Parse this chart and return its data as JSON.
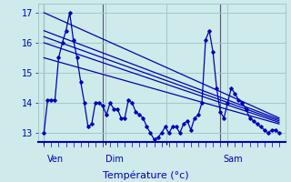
{
  "xlabel": "Température (°c)",
  "bg_color": "#ceeaea",
  "grid_color": "#a0c8c8",
  "line_color": "#0000bb",
  "vline_color": "#555577",
  "ylim": [
    12.7,
    17.3
  ],
  "yticks": [
    13,
    14,
    15,
    16,
    17
  ],
  "x_ven": 0,
  "x_dim": 48,
  "x_sam": 144,
  "x_min": -5,
  "x_max": 197,
  "forecast_lines": [
    {
      "x": [
        0,
        192
      ],
      "y": [
        17.0,
        13.5
      ]
    },
    {
      "x": [
        0,
        192
      ],
      "y": [
        16.4,
        13.45
      ]
    },
    {
      "x": [
        0,
        192
      ],
      "y": [
        16.2,
        13.4
      ]
    },
    {
      "x": [
        0,
        192
      ],
      "y": [
        16.0,
        13.35
      ]
    },
    {
      "x": [
        0,
        192
      ],
      "y": [
        15.5,
        13.3
      ]
    }
  ],
  "hourly": [
    [
      0,
      13.0
    ],
    [
      3,
      14.1
    ],
    [
      6,
      14.1
    ],
    [
      9,
      14.1
    ],
    [
      12,
      15.5
    ],
    [
      15,
      16.0
    ],
    [
      18,
      16.4
    ],
    [
      21,
      17.0
    ],
    [
      24,
      16.1
    ],
    [
      27,
      15.5
    ],
    [
      30,
      14.7
    ],
    [
      33,
      14.0
    ],
    [
      36,
      13.2
    ],
    [
      39,
      13.3
    ],
    [
      42,
      14.0
    ],
    [
      45,
      14.0
    ],
    [
      48,
      13.9
    ],
    [
      51,
      13.6
    ],
    [
      54,
      14.0
    ],
    [
      57,
      13.8
    ],
    [
      60,
      13.8
    ],
    [
      63,
      13.5
    ],
    [
      66,
      13.5
    ],
    [
      69,
      14.1
    ],
    [
      72,
      14.0
    ],
    [
      75,
      13.7
    ],
    [
      78,
      13.6
    ],
    [
      81,
      13.5
    ],
    [
      84,
      13.2
    ],
    [
      87,
      13.0
    ],
    [
      90,
      12.78
    ],
    [
      93,
      12.85
    ],
    [
      96,
      13.0
    ],
    [
      99,
      13.2
    ],
    [
      102,
      13.0
    ],
    [
      105,
      13.2
    ],
    [
      108,
      13.2
    ],
    [
      111,
      13.0
    ],
    [
      114,
      13.3
    ],
    [
      117,
      13.4
    ],
    [
      120,
      13.1
    ],
    [
      123,
      13.5
    ],
    [
      126,
      13.6
    ],
    [
      129,
      14.0
    ],
    [
      132,
      16.1
    ],
    [
      135,
      16.4
    ],
    [
      138,
      15.7
    ],
    [
      141,
      14.5
    ],
    [
      144,
      13.7
    ],
    [
      147,
      13.5
    ],
    [
      150,
      14.0
    ],
    [
      153,
      14.5
    ],
    [
      156,
      14.3
    ],
    [
      159,
      14.1
    ],
    [
      162,
      14.0
    ],
    [
      165,
      13.8
    ],
    [
      168,
      13.5
    ],
    [
      171,
      13.4
    ],
    [
      174,
      13.3
    ],
    [
      177,
      13.2
    ],
    [
      180,
      13.1
    ],
    [
      183,
      13.0
    ],
    [
      186,
      13.1
    ],
    [
      189,
      13.1
    ],
    [
      192,
      13.0
    ]
  ],
  "day_labels": [
    {
      "x": 0,
      "label": "Ven"
    },
    {
      "x": 48,
      "label": "Dim"
    },
    {
      "x": 144,
      "label": "Sam"
    }
  ]
}
